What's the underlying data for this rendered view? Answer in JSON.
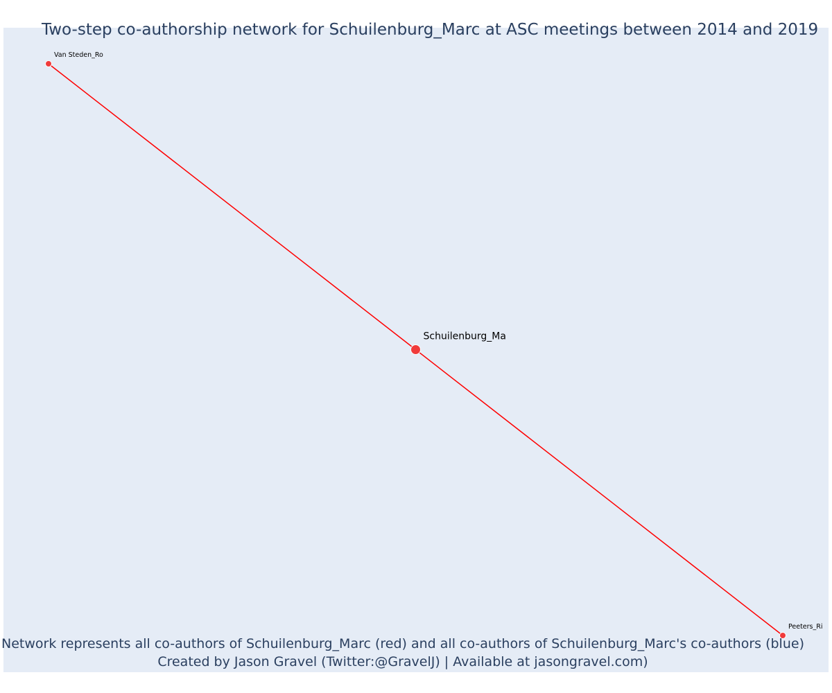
{
  "title": "Two-step co-authorship network for Schuilenburg_Marc at ASC meetings between 2014 and 2019",
  "caption": {
    "line1": "Network represents all co-authors of Schuilenburg_Marc (red) and all co-authors of Schuilenburg_Marc's co-authors (blue)",
    "line2": "Created by Jason Gravel (Twitter:@GravelJ) | Available at jasongravel.com)"
  },
  "colors": {
    "background": "#e5ecf6",
    "edge": "#ff0000",
    "node": "#f03b3b",
    "text": "#2a3f5f"
  },
  "nodes": [
    {
      "id": "van-steden",
      "label": "Van Steden_Ro",
      "x": -1.0,
      "y": 1.0,
      "role": "co-author"
    },
    {
      "id": "schuilenburg",
      "label": "Schuilenburg_Ma",
      "x": 0.0,
      "y": 0.0,
      "role": "focal"
    },
    {
      "id": "peeters",
      "label": "Peeters_Ri",
      "x": 1.0,
      "y": -1.0,
      "role": "co-author"
    }
  ],
  "edges": [
    {
      "source": "van-steden",
      "target": "schuilenburg"
    },
    {
      "source": "schuilenburg",
      "target": "peeters"
    }
  ]
}
